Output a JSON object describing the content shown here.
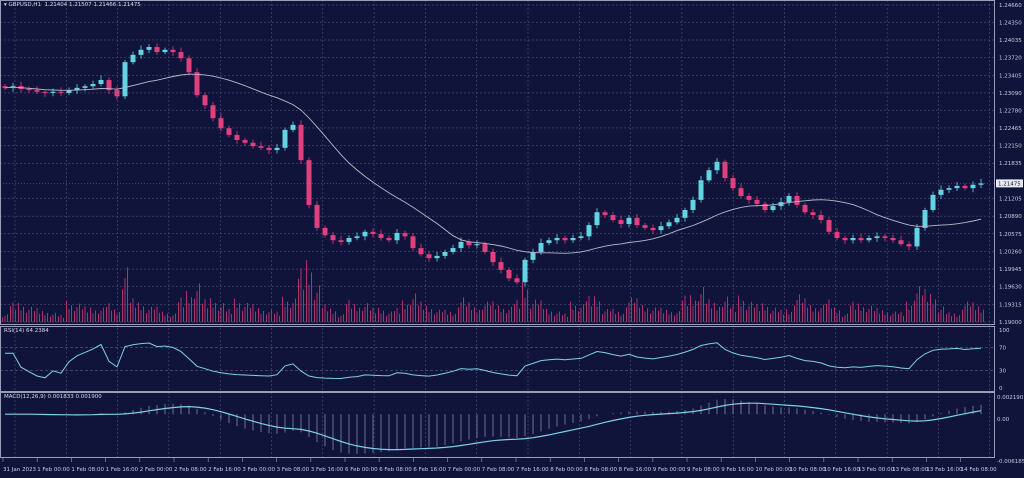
{
  "header": {
    "symbol": "GBPUSD,H1",
    "ohlc": "1.21404 1.21507 1.21466 1.21475"
  },
  "rsi": {
    "label": "RSI(14) 64.2384",
    "axis": [
      "100",
      "70",
      "30",
      "0"
    ]
  },
  "macd": {
    "label": "MACD(12,26,9) 0.001833 0.001900",
    "axis": [
      "0.002190",
      "0.00",
      "-0.006185"
    ]
  },
  "colors": {
    "background": "#10143a",
    "bull": "#62d4e3",
    "bear": "#e23f7c",
    "ma": "#b8b8c8",
    "indicator": "#7fd0e6",
    "volume": "#b0306a",
    "grid": "#5a5f86"
  },
  "chart_data": {
    "type": "candlestick",
    "symbol": "GBPUSD,H1",
    "current_price": "1.21475",
    "price_axis": [
      "1.24660",
      "1.24350",
      "1.24035",
      "1.23720",
      "1.23405",
      "1.23090",
      "1.22780",
      "1.22465",
      "1.22150",
      "1.21835",
      "1.21205",
      "1.20890",
      "1.20575",
      "1.20260",
      "1.19945",
      "1.19630",
      "1.19315",
      "1.19000"
    ],
    "ylim": [
      1.19,
      1.2466
    ],
    "time_axis": [
      "31 Jan 2023",
      "1 Feb 00:00",
      "1 Feb 08:00",
      "1 Feb 16:00",
      "2 Feb 00:00",
      "2 Feb 08:00",
      "2 Feb 16:00",
      "3 Feb 00:00",
      "3 Feb 08:00",
      "3 Feb 16:00",
      "6 Feb 00:00",
      "6 Feb 08:00",
      "6 Feb 16:00",
      "7 Feb 00:00",
      "7 Feb 08:00",
      "7 Feb 16:00",
      "8 Feb 00:00",
      "8 Feb 08:00",
      "8 Feb 16:00",
      "9 Feb 00:00",
      "9 Feb 08:00",
      "9 Feb 16:00",
      "10 Feb 00:00",
      "10 Feb 08:00",
      "10 Feb 16:00",
      "13 Feb 00:00",
      "13 Feb 08:00",
      "13 Feb 16:00",
      "14 Feb 08:00"
    ],
    "close": [
      1.2318,
      1.2321,
      1.2316,
      1.2314,
      1.2311,
      1.2309,
      1.2311,
      1.2309,
      1.2314,
      1.2318,
      1.2321,
      1.2325,
      1.2332,
      1.2314,
      1.2303,
      1.2364,
      1.2377,
      1.2386,
      1.2391,
      1.2382,
      1.2386,
      1.2382,
      1.2371,
      1.2346,
      1.2305,
      1.2287,
      1.2264,
      1.2246,
      1.2234,
      1.2225,
      1.222,
      1.2214,
      1.2211,
      1.2207,
      1.2211,
      1.2243,
      1.2252,
      1.2189,
      1.2109,
      1.2068,
      1.2055,
      1.2046,
      1.2043,
      1.205,
      1.2053,
      1.2061,
      1.2057,
      1.205,
      1.2046,
      1.2059,
      1.2053,
      1.2032,
      1.2021,
      1.2014,
      1.2018,
      1.2025,
      1.2032,
      1.2043,
      1.2037,
      1.2039,
      1.2025,
      1.2007,
      1.1993,
      1.1978,
      1.1971,
      1.2011,
      1.2025,
      1.2041,
      1.2046,
      1.205,
      1.2046,
      1.205,
      1.2053,
      1.2073,
      1.2096,
      1.2091,
      1.2082,
      1.2075,
      1.2086,
      1.2073,
      1.2068,
      1.2064,
      1.2071,
      1.2078,
      1.2086,
      1.21,
      1.2118,
      1.2153,
      1.2171,
      1.2186,
      1.2157,
      1.2139,
      1.2125,
      1.2118,
      1.2111,
      1.21,
      1.2107,
      1.2114,
      1.2125,
      1.2109,
      1.2096,
      1.2091,
      1.2082,
      1.2061,
      1.205,
      1.2046,
      1.205,
      1.2046,
      1.205,
      1.2053,
      1.205,
      1.2046,
      1.2039,
      1.2035,
      1.2068,
      1.21,
      1.2127,
      1.2136,
      1.2139,
      1.2143,
      1.2139,
      1.2145,
      1.21475
    ]
  }
}
